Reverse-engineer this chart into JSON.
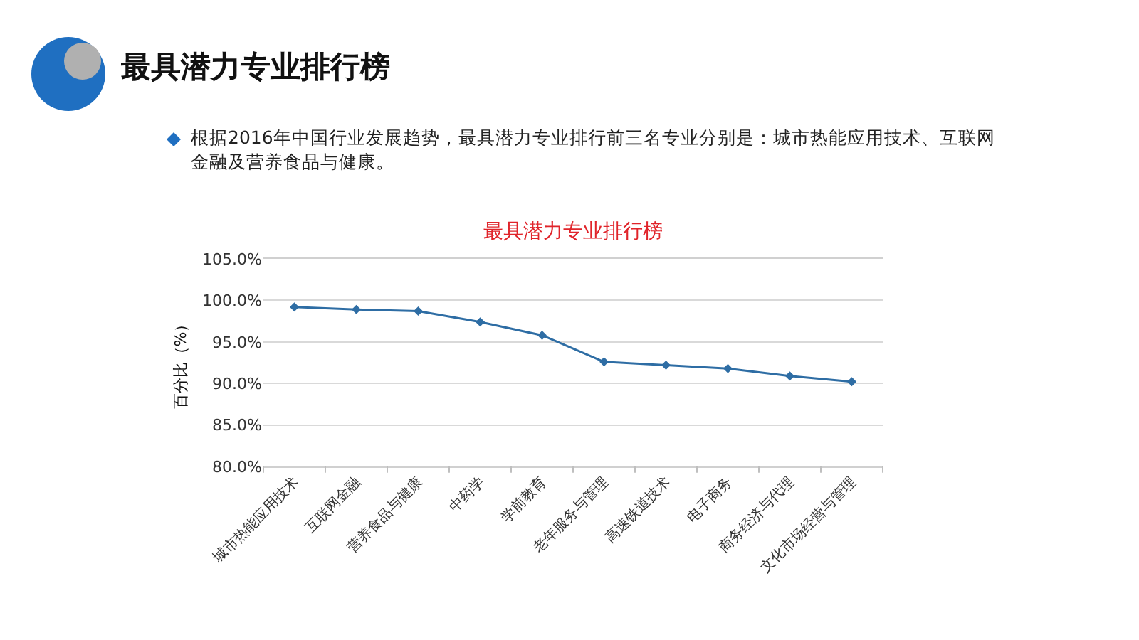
{
  "chart_data": {
    "type": "line",
    "title": "最具潜力专业排行榜",
    "subtitle": "根据2016年中国行业发展趋势，最具潜力专业排行前三名专业分别是：城市热能应用技术、互联网金融及营养食品与健康。",
    "annotations": [
      "最具潜力专业排行榜"
    ],
    "ylabel": "百分比（%）",
    "categories": [
      "城市热能应用技术",
      "互联网金融",
      "营养食品与健康",
      "中药学",
      "学前教育",
      "老年服务与管理",
      "高速铁道技术",
      "电子商务",
      "商务经济与代理",
      "文化市场经营与管理"
    ],
    "series": [
      {
        "color": "#2e6da4",
        "values": [
          99.2,
          98.9,
          98.7,
          97.4,
          95.8,
          92.6,
          92.2,
          91.8,
          90.9,
          90.2
        ]
      }
    ],
    "ylim": [
      80,
      105
    ],
    "yticks": [
      {
        "value": 80,
        "label": "80.0%"
      },
      {
        "value": 85,
        "label": "85.0%"
      },
      {
        "value": 90,
        "label": "90.0%"
      },
      {
        "value": 95,
        "label": "95.0%"
      },
      {
        "value": 100,
        "label": "100.0%"
      },
      {
        "value": 105,
        "label": "105.0%"
      }
    ],
    "grid": "y",
    "marker": "diamond",
    "line_style": "solid"
  }
}
